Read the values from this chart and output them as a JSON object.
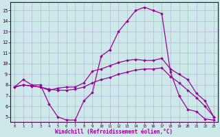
{
  "xlabel": "Windchill (Refroidissement éolien,°C)",
  "ylabel": "",
  "background_color": "#cce8e8",
  "grid_color": "#aaaacc",
  "line_color": "#990099",
  "x_ticks": [
    0,
    1,
    2,
    3,
    4,
    5,
    6,
    7,
    8,
    9,
    10,
    11,
    12,
    13,
    14,
    15,
    16,
    17,
    18,
    19,
    20,
    21,
    22,
    23
  ],
  "y_ticks": [
    5,
    6,
    7,
    8,
    9,
    10,
    11,
    12,
    13,
    14,
    15
  ],
  "ylim": [
    4.5,
    15.8
  ],
  "xlim": [
    -0.5,
    23.5
  ],
  "line1": [
    7.8,
    8.5,
    8.0,
    8.0,
    6.2,
    5.0,
    4.7,
    4.7,
    6.5,
    7.3,
    10.7,
    11.3,
    13.0,
    14.0,
    15.0,
    15.3,
    15.0,
    14.7,
    9.2,
    7.0,
    5.7,
    5.5,
    4.8,
    4.7
  ],
  "line2": [
    7.8,
    8.0,
    7.9,
    7.8,
    7.5,
    7.7,
    7.8,
    7.8,
    8.2,
    9.3,
    9.5,
    9.8,
    10.1,
    10.3,
    10.4,
    10.3,
    10.3,
    10.5,
    9.5,
    9.0,
    8.5,
    7.2,
    6.5,
    5.0
  ],
  "line3": [
    7.8,
    8.0,
    7.9,
    7.8,
    7.6,
    7.5,
    7.5,
    7.6,
    7.8,
    8.2,
    8.5,
    8.7,
    9.0,
    9.2,
    9.4,
    9.5,
    9.5,
    9.6,
    8.8,
    8.2,
    7.5,
    6.8,
    6.0,
    5.0
  ]
}
